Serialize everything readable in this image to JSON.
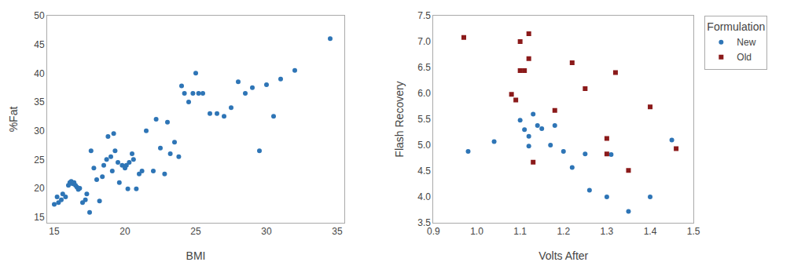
{
  "chart_data": [
    {
      "type": "scatter",
      "xlabel": "BMI",
      "ylabel": "%Fat",
      "xlim": [
        14.5,
        35.5
      ],
      "ylim": [
        14,
        50
      ],
      "xticks": [
        15,
        20,
        25,
        30,
        35
      ],
      "yticks": [
        15,
        20,
        25,
        30,
        35,
        40,
        45,
        50
      ],
      "grid": false,
      "color": "#2E75B6",
      "marker": "circle",
      "x": [
        15.0,
        15.2,
        15.3,
        15.5,
        15.6,
        15.8,
        16.0,
        16.1,
        16.2,
        16.3,
        16.4,
        16.5,
        16.6,
        16.7,
        16.8,
        17.0,
        17.2,
        17.3,
        17.5,
        17.6,
        17.8,
        18.0,
        18.2,
        18.4,
        18.5,
        18.7,
        18.8,
        19.0,
        19.1,
        19.2,
        19.3,
        19.5,
        19.6,
        19.8,
        20.0,
        20.1,
        20.2,
        20.3,
        20.5,
        20.6,
        20.8,
        21.0,
        21.2,
        21.5,
        22.0,
        22.2,
        22.5,
        22.8,
        23.0,
        23.2,
        23.5,
        23.8,
        24.0,
        24.2,
        24.5,
        24.8,
        25.0,
        25.2,
        25.5,
        26.0,
        26.5,
        27.0,
        27.5,
        28.0,
        28.5,
        29.0,
        29.5,
        30.0,
        30.5,
        31.0,
        32.0,
        34.5
      ],
      "values": [
        17.2,
        18.5,
        17.5,
        18.0,
        19.0,
        18.5,
        20.5,
        21.0,
        21.2,
        20.8,
        21.0,
        20.5,
        20.2,
        19.8,
        20.0,
        17.5,
        18.0,
        19.0,
        15.8,
        26.5,
        23.5,
        21.5,
        17.8,
        22.0,
        24.0,
        25.0,
        29.0,
        25.5,
        23.0,
        29.5,
        26.5,
        24.5,
        21.0,
        24.0,
        23.5,
        24.0,
        19.9,
        24.5,
        26.0,
        25.0,
        19.9,
        22.5,
        23.0,
        30.0,
        23.0,
        32.0,
        27.0,
        22.5,
        31.5,
        26.0,
        28.0,
        25.5,
        37.8,
        36.5,
        35.0,
        36.5,
        40.0,
        36.5,
        36.5,
        33.0,
        33.0,
        32.5,
        34.0,
        38.5,
        36.5,
        37.5,
        26.5,
        38.0,
        32.5,
        39.0,
        40.5,
        46.0
      ]
    },
    {
      "type": "scatter",
      "xlabel": "Volts After",
      "ylabel": "Flash Recovery",
      "xlim": [
        0.9,
        1.5
      ],
      "ylim": [
        3.5,
        7.5
      ],
      "xticks": [
        0.9,
        {
          "value": 1,
          "label": "1.0"
        },
        1.1,
        1.2,
        1.3,
        1.4,
        1.5
      ],
      "yticks": [
        3.5,
        {
          "value": 4,
          "label": "4.0"
        },
        4.5,
        {
          "value": 5,
          "label": "5.0"
        },
        5.5,
        {
          "value": 6,
          "label": "6.0"
        },
        6.5,
        {
          "value": 7,
          "label": "7.0"
        },
        7.5
      ],
      "grid": false,
      "legend": "outside upper right",
      "legend_title": "Formulation",
      "series": [
        {
          "name": "New",
          "color": "#2E75B6",
          "marker": "circle",
          "x": [
            0.98,
            1.04,
            1.1,
            1.11,
            1.12,
            1.12,
            1.13,
            1.14,
            1.15,
            1.17,
            1.18,
            1.2,
            1.22,
            1.25,
            1.26,
            1.3,
            1.31,
            1.35,
            1.4,
            1.45
          ],
          "values": [
            4.88,
            5.07,
            5.48,
            5.3,
            5.17,
            4.98,
            5.6,
            5.38,
            5.32,
            5.0,
            5.38,
            4.88,
            4.57,
            4.83,
            4.13,
            4.0,
            4.82,
            3.72,
            4.0,
            5.1
          ]
        },
        {
          "name": "Old",
          "color": "#8B1A1A",
          "marker": "square",
          "x": [
            0.97,
            1.08,
            1.09,
            1.1,
            1.1,
            1.11,
            1.12,
            1.12,
            1.13,
            1.18,
            1.22,
            1.25,
            1.3,
            1.3,
            1.32,
            1.35,
            1.4,
            1.46
          ],
          "values": [
            7.08,
            5.98,
            5.87,
            7.0,
            6.44,
            6.44,
            7.15,
            6.67,
            4.67,
            5.67,
            6.59,
            6.09,
            5.13,
            4.83,
            6.4,
            4.51,
            5.74,
            4.93
          ]
        }
      ]
    }
  ]
}
